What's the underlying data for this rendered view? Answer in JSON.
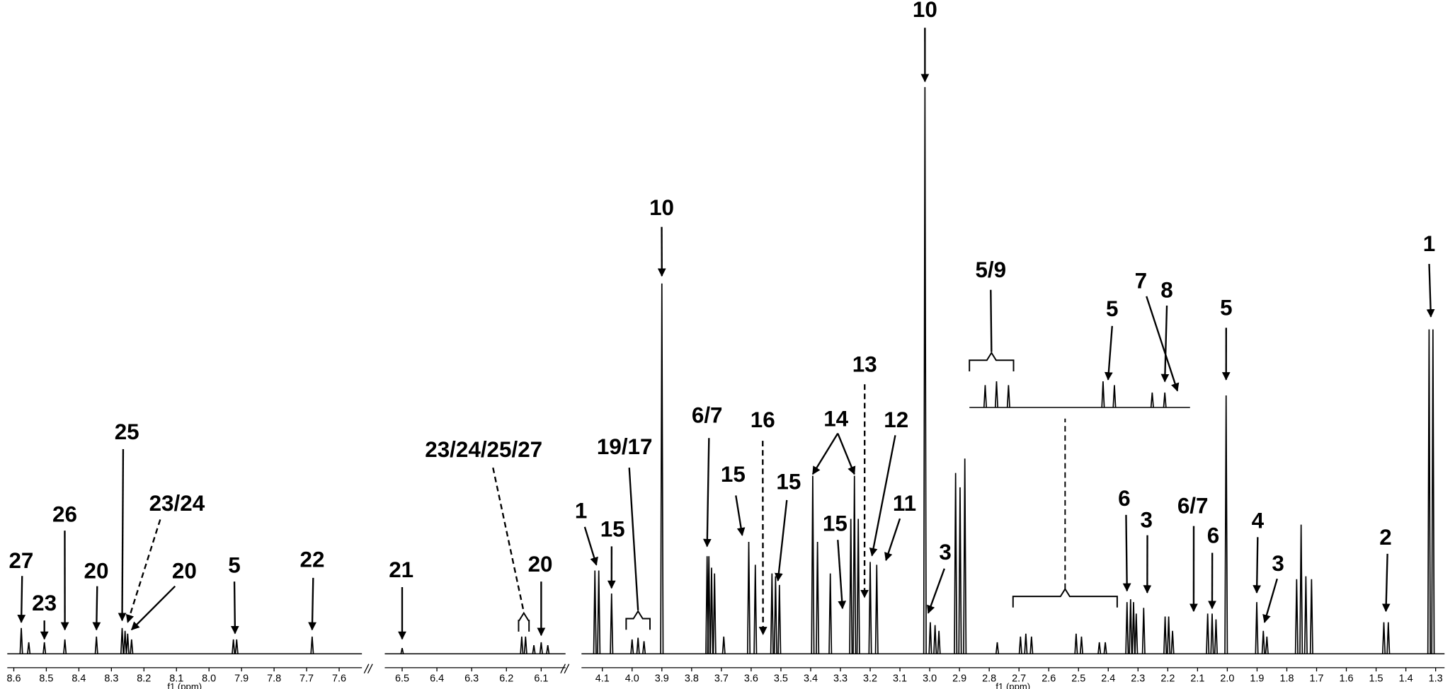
{
  "chart_data": [
    {
      "type": "spectrum",
      "xlabel": "f1 (ppm)",
      "color": "#000000",
      "xlim": [
        8.62,
        7.53
      ],
      "xticks": [
        8.6,
        8.5,
        8.4,
        8.3,
        8.2,
        8.1,
        {
          "value": 8,
          "label": "8.0"
        },
        7.9,
        7.8,
        7.7,
        7.6
      ],
      "ylim": [
        0,
        100
      ],
      "peaks": {
        "x": [
          8.577,
          8.554,
          8.506,
          8.443,
          8.346,
          8.267,
          8.258,
          8.25,
          8.238,
          7.925,
          7.915,
          7.683
        ],
        "values": [
          4.5,
          2,
          2,
          2.5,
          3,
          4.5,
          4,
          3.5,
          2.5,
          2.5,
          2.5,
          3
        ]
      },
      "annotations": [
        {
          "text": "27",
          "x": 8.577
        },
        {
          "text": "23",
          "x": 8.506
        },
        {
          "text": "26",
          "x": 8.443
        },
        {
          "text": "20",
          "x": 8.346
        },
        {
          "text": "25",
          "x": 8.267
        },
        {
          "text": "23/24",
          "x": 8.25,
          "dashed": true
        },
        {
          "text": "20",
          "x": 8.238
        },
        {
          "text": "5",
          "x": 7.92
        },
        {
          "text": "22",
          "x": 7.683
        }
      ]
    },
    {
      "type": "spectrum",
      "color": "#000000",
      "xlim": [
        6.55,
        6.03
      ],
      "xticks": [
        6.5,
        6.4,
        6.3,
        6.2,
        6.1
      ],
      "ylim": [
        0,
        100
      ],
      "peaks": {
        "x": [
          6.5,
          6.156,
          6.145,
          6.121,
          6.1,
          6.081
        ],
        "values": [
          1,
          3,
          3,
          1.5,
          2,
          1.5
        ]
      },
      "annotations": [
        {
          "text": "21",
          "x": 6.5
        },
        {
          "text": "23/24/25/27",
          "range": [
            6.165,
            6.135
          ],
          "dashed": true
        },
        {
          "text": "20",
          "x": 6.1
        }
      ]
    },
    {
      "type": "spectrum",
      "xlabel": "f1 (ppm)",
      "color": "#000000",
      "xlim": [
        4.17,
        1.27
      ],
      "xticks": [
        4.1,
        {
          "value": 4,
          "label": "4.0"
        },
        3.9,
        3.8,
        3.7,
        3.6,
        3.5,
        3.4,
        3.3,
        3.2,
        3.1,
        {
          "value": 3,
          "label": "3.0"
        },
        2.9,
        2.8,
        2.7,
        2.6,
        2.5,
        2.4,
        2.3,
        2.2,
        2.1,
        {
          "value": 2,
          "label": "2.0"
        },
        1.9,
        1.8,
        1.7,
        1.6,
        1.5,
        1.4,
        1.3
      ],
      "ylim": [
        0,
        100
      ],
      "peaks": {
        "x": [
          4.125,
          4.112,
          4.069,
          4.0,
          3.98,
          3.96,
          3.9,
          3.748,
          3.742,
          3.733,
          3.723,
          3.692,
          3.608,
          3.586,
          3.53,
          3.518,
          3.505,
          3.393,
          3.377,
          3.334,
          3.265,
          3.253,
          3.24,
          3.2,
          3.178,
          3.016,
          2.998,
          2.982,
          2.969,
          2.913,
          2.898,
          2.882,
          2.773,
          2.695,
          2.677,
          2.658,
          2.508,
          2.49,
          2.43,
          2.41,
          2.337,
          2.325,
          2.315,
          2.306,
          2.281,
          2.209,
          2.197,
          2.184,
          2.066,
          2.051,
          2.038,
          2.004,
          1.901,
          1.879,
          1.867,
          1.767,
          1.752,
          1.736,
          1.717,
          1.474,
          1.459,
          1.322,
          1.309
        ],
        "values": [
          14.5,
          14.5,
          10.5,
          2.5,
          2.8,
          2.2,
          64.5,
          17,
          17,
          15,
          14,
          3,
          19.5,
          15.5,
          14,
          13.5,
          12,
          31,
          19.5,
          14,
          23.5,
          31,
          23.5,
          16,
          15.5,
          98.7,
          5.5,
          5,
          4,
          31.5,
          29,
          34,
          2,
          3,
          3.5,
          3,
          3.5,
          3,
          2,
          2,
          9,
          9.5,
          9,
          7,
          8,
          6.5,
          6.5,
          4,
          7,
          7,
          6,
          45,
          9,
          4,
          3,
          13,
          22.5,
          13.5,
          13,
          5.5,
          5.5,
          56.5,
          56.5
        ]
      },
      "annotations": [
        {
          "text": "1",
          "x": 4.12
        },
        {
          "text": "15",
          "x": 4.069
        },
        {
          "text": "19/17",
          "range": [
            4.02,
            3.94
          ]
        },
        {
          "text": "10",
          "x": 3.9
        },
        {
          "text": "6/7",
          "x": 3.748
        },
        {
          "text": "15",
          "x": 3.63
        },
        {
          "text": "16",
          "x": 3.56,
          "dashed": true
        },
        {
          "text": "15",
          "x": 3.51
        },
        {
          "text": "14",
          "x": [
            3.393,
            3.253
          ]
        },
        {
          "text": "15",
          "x": 3.293
        },
        {
          "text": "13",
          "x": 3.219,
          "dashed": true
        },
        {
          "text": "12",
          "x": 3.194
        },
        {
          "text": "11",
          "x": 3.147
        },
        {
          "text": "10",
          "x": 3.016
        },
        {
          "text": "3",
          "x": 3.005
        },
        {
          "text": "6",
          "x": 2.337
        },
        {
          "text": "3",
          "x": 2.269
        },
        {
          "text": "6/7",
          "x": 2.113
        },
        {
          "text": "6",
          "x": 2.051
        },
        {
          "text": "5",
          "x": 2.004
        },
        {
          "text": "4",
          "x": 1.901
        },
        {
          "text": "3",
          "x": 1.875
        },
        {
          "text": "2",
          "x": 1.467
        },
        {
          "text": "1",
          "x": 1.316
        }
      ],
      "inset": {
        "xlim": [
          2.72,
          2.37
        ],
        "annotations": [
          {
            "text": "5/9",
            "range": [
              2.72,
              2.65
            ]
          },
          {
            "text": "5",
            "x": 2.5
          },
          {
            "text": "7",
            "x": 2.39
          },
          {
            "text": "8",
            "x": 2.41
          }
        ]
      }
    }
  ]
}
